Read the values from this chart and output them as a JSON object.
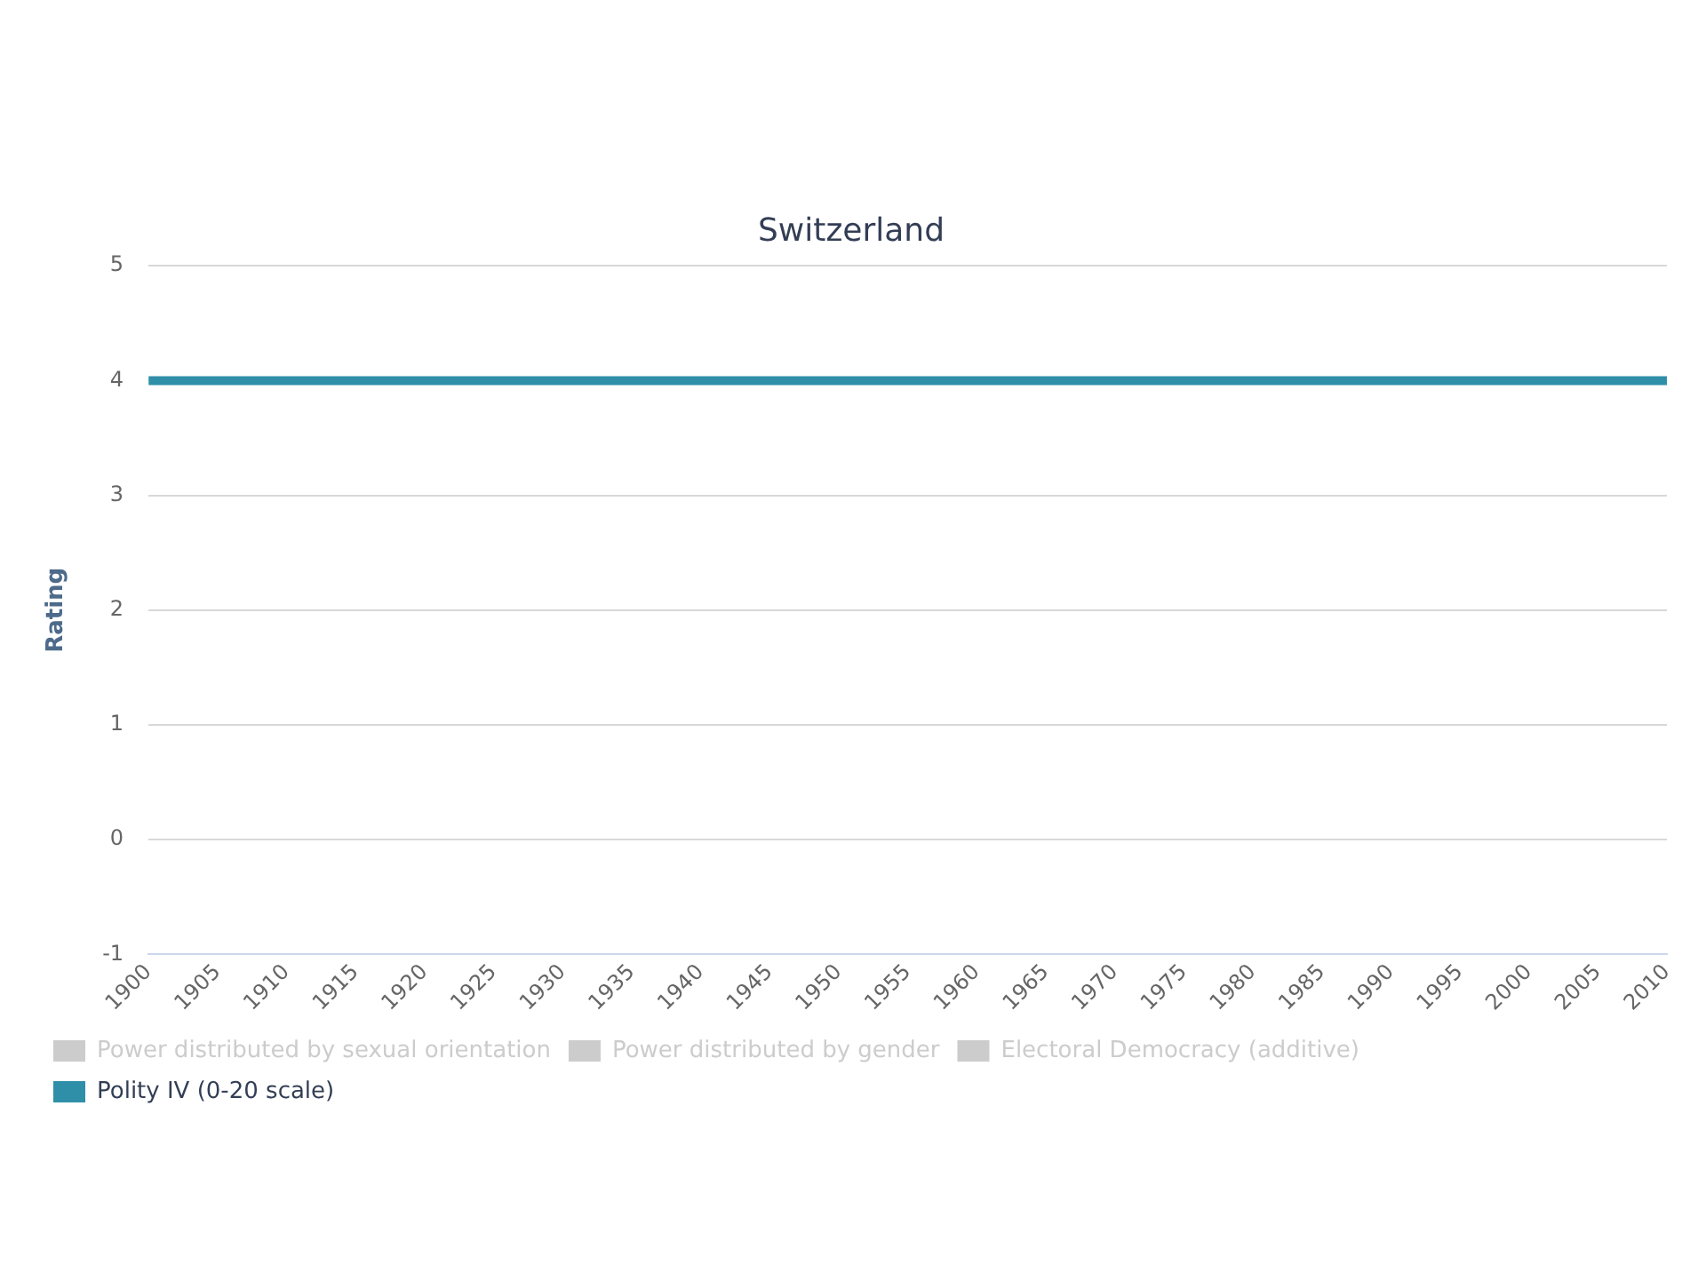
{
  "chart_data": {
    "type": "line",
    "title": "Switzerland",
    "ylabel": "Rating",
    "x": [
      1900,
      2010
    ],
    "series": [
      {
        "name": "Power distributed by sexual orientation",
        "color": "#cccccc",
        "values": [
          null,
          null
        ]
      },
      {
        "name": "Power distributed by gender",
        "color": "#cccccc",
        "values": [
          null,
          null
        ]
      },
      {
        "name": "Electoral Democracy (additive)",
        "color": "#cccccc",
        "values": [
          null,
          null
        ]
      },
      {
        "name": "Polity IV (0-20 scale)",
        "color": "#2f8fa8",
        "values": [
          4,
          4
        ]
      }
    ],
    "xlim": [
      1900,
      2010
    ],
    "xticks": [
      1900,
      1905,
      1910,
      1915,
      1920,
      1925,
      1930,
      1935,
      1940,
      1945,
      1950,
      1955,
      1960,
      1965,
      1970,
      1975,
      1980,
      1985,
      1990,
      1995,
      2000,
      2005,
      2010
    ],
    "ylim": [
      -1,
      5
    ],
    "yticks": [
      -1,
      0,
      1,
      2,
      3,
      4,
      5
    ],
    "grid": "y",
    "legend": "bottom left",
    "marker": "none",
    "line_style": "solid"
  }
}
